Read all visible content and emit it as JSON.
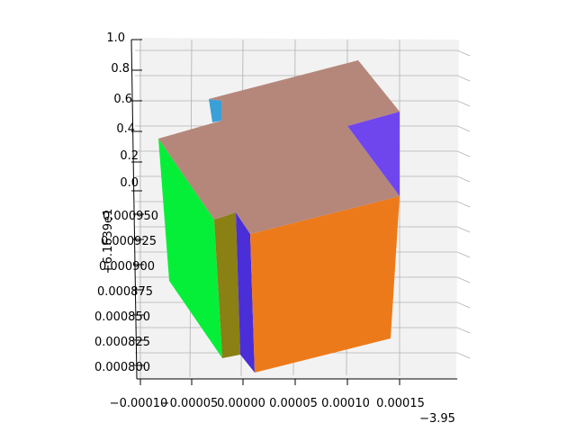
{
  "chart_data": {
    "type": "3d-voxels",
    "title": "",
    "x_axis": {
      "tick_labels": [
        "−0.00010",
        "−0.00005",
        "0.00000",
        "0.00005",
        "0.00010",
        "0.00015"
      ],
      "offset_label": "−3.95"
    },
    "y_axis": {
      "tick_labels": [
        "0.000800",
        "0.000825",
        "0.000850",
        "0.000875",
        "0.000900",
        "0.000925",
        "0.000950"
      ],
      "offset_label": "+6.1639e1"
    },
    "z_axis": {
      "tick_labels": [
        "0.0",
        "0.2",
        "0.4",
        "0.6",
        "0.8",
        "1.0"
      ],
      "range": [
        0,
        1
      ]
    },
    "grid": true,
    "colors": {
      "top": "#b5877b",
      "front": "#ed7a1a",
      "left": "#06ef38",
      "right_back": "#6f46ed",
      "inner_left": "#8a8014",
      "inner_right": "#4a2ed8",
      "back_blue": "#3aa0d8",
      "pane": "#f2f2f2"
    }
  }
}
